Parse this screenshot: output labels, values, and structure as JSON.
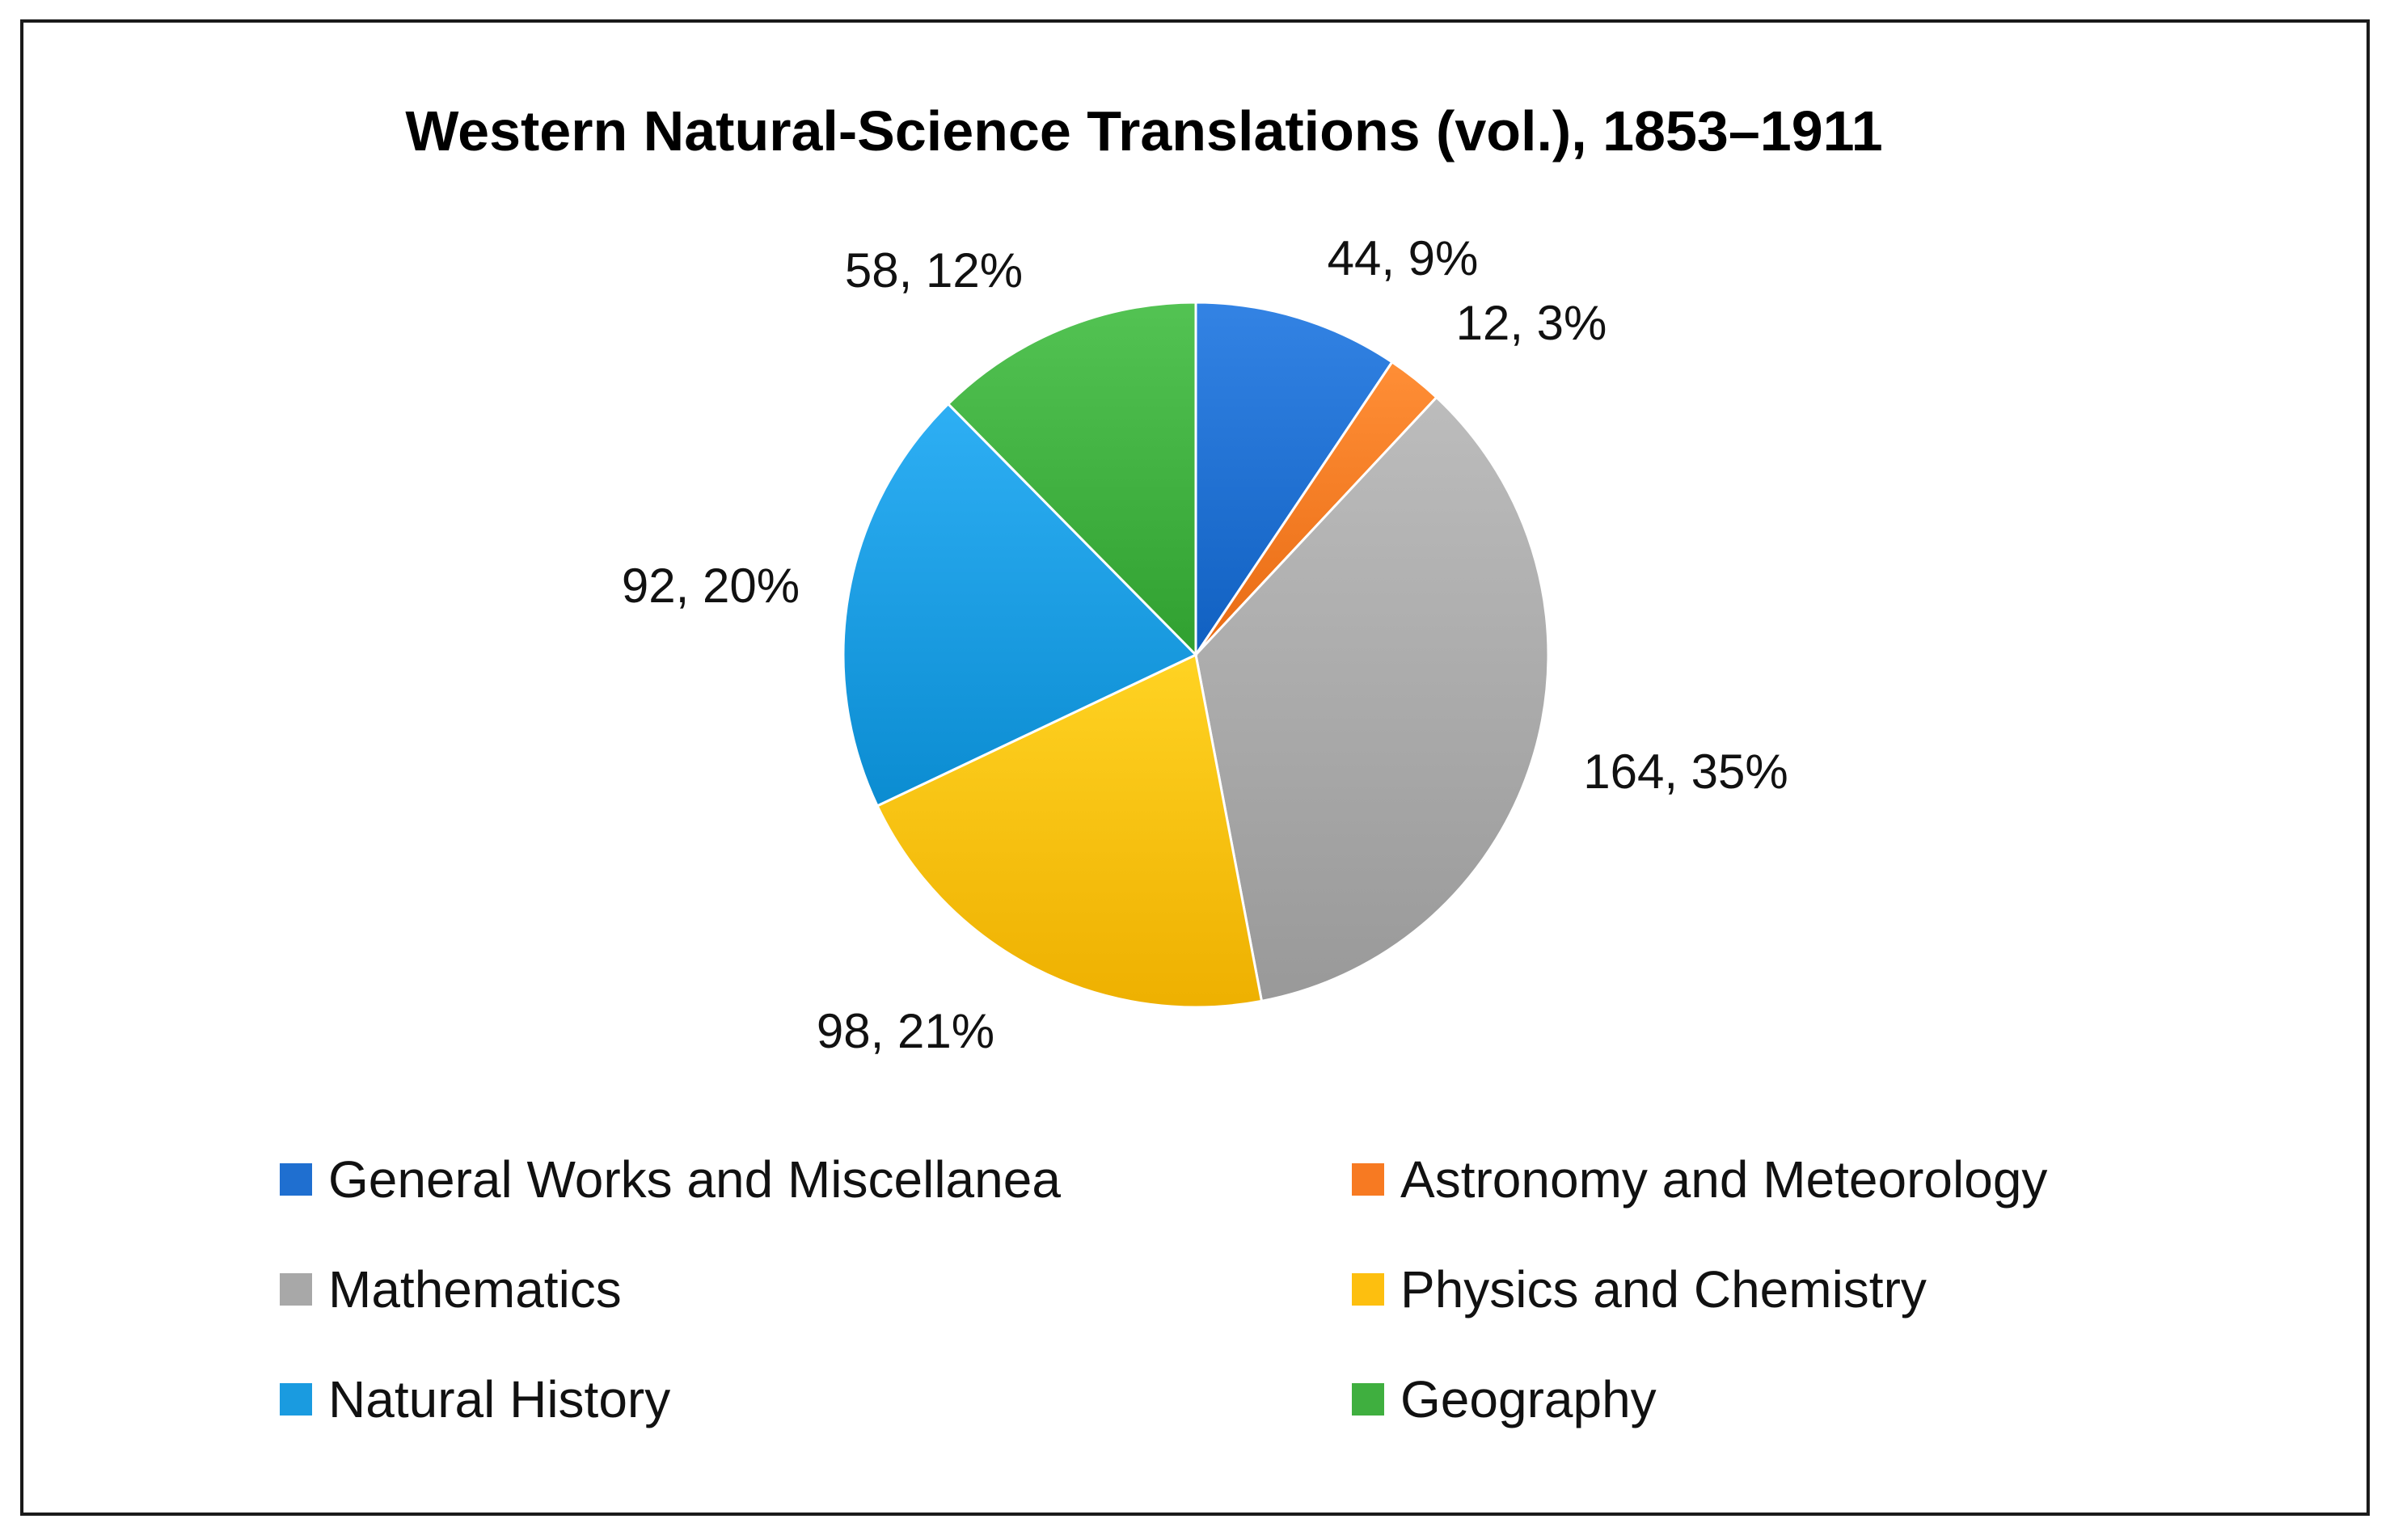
{
  "chart_data": {
    "type": "pie",
    "title": "Western Natural-Science Translations (vol.), 1853–1911",
    "slices": [
      {
        "name": "General Works and Miscellanea",
        "value": 44,
        "percent": "9%",
        "label": "44, 9%",
        "color": "#1f6fd0"
      },
      {
        "name": "Astronomy and Meteorology",
        "value": 12,
        "percent": "3%",
        "label": "12, 3%",
        "color": "#f77a22"
      },
      {
        "name": "Mathematics",
        "value": 164,
        "percent": "35%",
        "label": "164, 35%",
        "color": "#a8a8a8"
      },
      {
        "name": "Physics and Chemistry",
        "value": 98,
        "percent": "21%",
        "label": "98, 21%",
        "color": "#fdbf0f"
      },
      {
        "name": "Natural History",
        "value": 92,
        "percent": "20%",
        "label": "92, 20%",
        "color": "#1a9be0"
      },
      {
        "name": "Geography",
        "value": 58,
        "percent": "12%",
        "label": "58, 12%",
        "color": "#3faf3f"
      }
    ],
    "start_angle": "12 o'clock",
    "direction": "clockwise",
    "legend_position": "bottom",
    "data_labels": "outside"
  }
}
